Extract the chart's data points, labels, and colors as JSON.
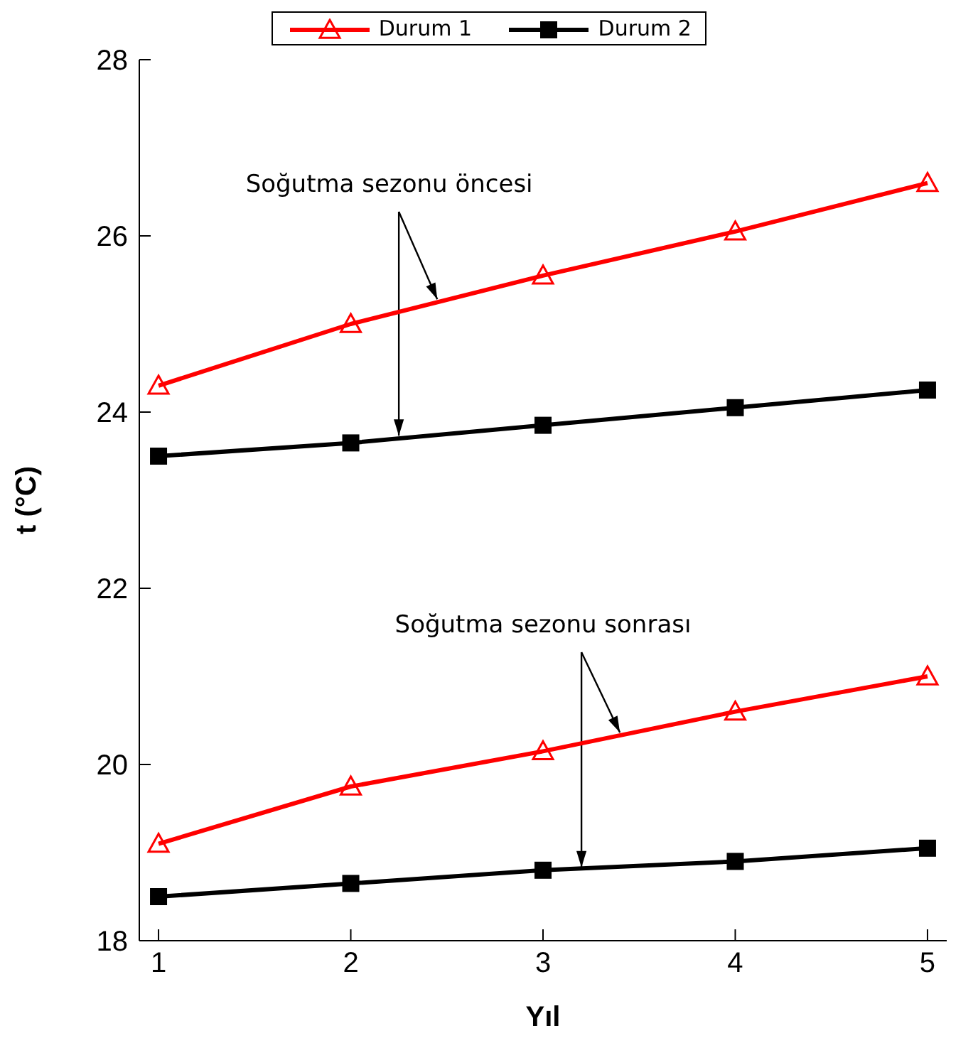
{
  "chart_data": {
    "type": "line",
    "xlabel": "Yıl",
    "ylabel": "t (°C)",
    "x": [
      1,
      2,
      3,
      4,
      5
    ],
    "xlim": [
      0.9,
      5.1
    ],
    "xticks": [
      1,
      2,
      3,
      4,
      5
    ],
    "ylim": [
      18,
      28
    ],
    "yticks": [
      18,
      20,
      22,
      24,
      26,
      28
    ],
    "legend": "top",
    "grid": false,
    "line_style": "solid",
    "series": [
      {
        "name": "Durum 1",
        "color": "#ff0000",
        "marker": "triangle",
        "values": [
          24.3,
          25.0,
          25.55,
          26.05,
          26.6
        ]
      },
      {
        "name": "Durum 2",
        "color": "#000000",
        "marker": "square",
        "values": [
          23.5,
          23.65,
          23.85,
          24.05,
          24.25
        ]
      },
      {
        "color": "#ff0000",
        "marker": "triangle",
        "values": [
          19.1,
          19.75,
          20.15,
          20.6,
          21.0
        ]
      },
      {
        "color": "#000000",
        "marker": "square",
        "values": [
          18.5,
          18.65,
          18.8,
          18.9,
          19.05
        ]
      }
    ],
    "annotations": [
      {
        "text": "Soğutma sezonu öncesi",
        "x": 2.25,
        "y": 23.7
      },
      {
        "text": "Soğutma sezonu sonrası",
        "x": 3.2,
        "y": 18.8
      }
    ]
  }
}
